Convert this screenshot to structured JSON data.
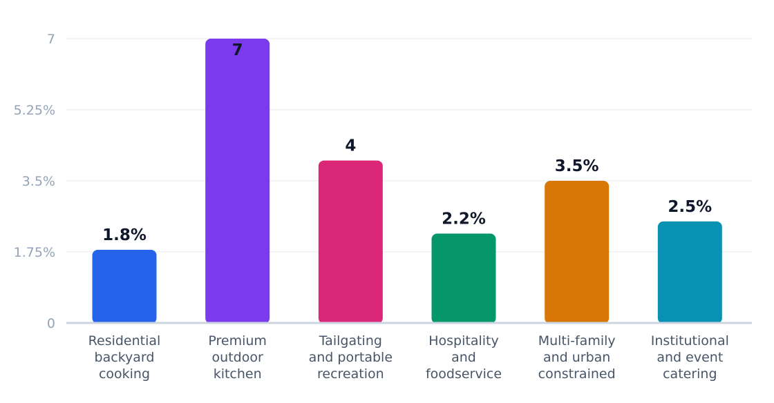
{
  "chart_data": {
    "type": "bar",
    "title": "",
    "xlabel": "",
    "ylabel": "",
    "ylim": [
      0,
      7
    ],
    "grid": true,
    "y_ticks": [
      {
        "value": 0,
        "label": "0"
      },
      {
        "value": 1.75,
        "label": "1.75%"
      },
      {
        "value": 3.5,
        "label": "3.5%"
      },
      {
        "value": 5.25,
        "label": "5.25%"
      },
      {
        "value": 7,
        "label": "7"
      }
    ],
    "categories": [
      {
        "lines": [
          "Residential",
          "backyard",
          "cooking"
        ]
      },
      {
        "lines": [
          "Premium",
          "outdoor",
          "kitchen"
        ]
      },
      {
        "lines": [
          "Tailgating",
          "and portable",
          "recreation"
        ]
      },
      {
        "lines": [
          "Hospitality",
          "and",
          "foodservice"
        ]
      },
      {
        "lines": [
          "Multi-family",
          "and urban",
          "constrained"
        ]
      },
      {
        "lines": [
          "Institutional",
          "and event",
          "catering"
        ]
      }
    ],
    "values": [
      1.8,
      7,
      4,
      2.2,
      3.5,
      2.5
    ],
    "value_labels": [
      "1.8%",
      "7",
      "4",
      "2.2%",
      "3.5%",
      "2.5%"
    ],
    "colors": [
      "#2563eb",
      "#7c3aed",
      "#db2777",
      "#059669",
      "#d97706",
      "#0891b2"
    ]
  }
}
